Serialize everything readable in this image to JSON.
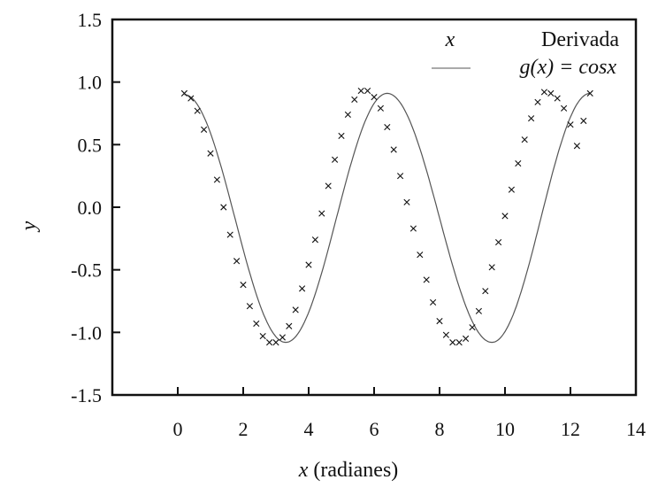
{
  "chart_data": {
    "type": "line",
    "xlabel_var": "x",
    "xlabel_unit": " (radianes)",
    "ylabel": "y",
    "xlim": [
      -2,
      14
    ],
    "ylim": [
      -1.5,
      1.5
    ],
    "x_ticks": [
      0,
      2,
      4,
      6,
      8,
      10,
      12,
      14
    ],
    "y_ticks": [
      1.5,
      1.0,
      0.5,
      0.0,
      -0.5,
      -1.0,
      -1.5
    ],
    "x_tick_labels": [
      "0",
      "2",
      "4",
      "6",
      "8",
      "10",
      "12",
      "14"
    ],
    "y_tick_labels": [
      "1.5",
      "1.0",
      "0.5",
      "0.0",
      "-0.5",
      "-1.0",
      "-1.5"
    ],
    "grid": false,
    "legend_position": "top-right",
    "legend": {
      "markers_symbol": "x",
      "markers_label": "Derivada",
      "line_label_prefix": "g(x) = ",
      "line_label_func": "cosx"
    },
    "series": [
      {
        "name": "Derivada",
        "style": "markers",
        "marker": "x",
        "color": "#111111",
        "x": [
          0.2,
          0.4,
          0.6,
          0.8,
          1.0,
          1.2,
          1.4,
          1.6,
          1.8,
          2.0,
          2.2,
          2.4,
          2.6,
          2.8,
          3.0,
          3.2,
          3.4,
          3.6,
          3.8,
          4.0,
          4.2,
          4.4,
          4.6,
          4.8,
          5.0,
          5.2,
          5.4,
          5.6,
          5.8,
          6.0,
          6.2,
          6.4,
          6.6,
          6.8,
          7.0,
          7.2,
          7.4,
          7.6,
          7.8,
          8.0,
          8.2,
          8.4,
          8.6,
          8.8,
          9.0,
          9.2,
          9.4,
          9.6,
          9.8,
          10.0,
          10.2,
          10.4,
          10.6,
          10.8,
          11.0,
          11.2,
          11.4,
          11.6,
          11.8,
          12.0,
          12.2,
          12.4,
          12.6
        ],
        "y": [
          0.91,
          0.87,
          0.77,
          0.62,
          0.43,
          0.22,
          0.0,
          -0.22,
          -0.43,
          -0.62,
          -0.79,
          -0.93,
          -1.03,
          -1.08,
          -1.08,
          -1.04,
          -0.95,
          -0.82,
          -0.65,
          -0.46,
          -0.26,
          -0.05,
          0.17,
          0.38,
          0.57,
          0.74,
          0.86,
          0.93,
          0.93,
          0.88,
          0.79,
          0.64,
          0.46,
          0.25,
          0.04,
          -0.17,
          -0.38,
          -0.58,
          -0.76,
          -0.91,
          -1.02,
          -1.08,
          -1.08,
          -1.05,
          -0.96,
          -0.83,
          -0.67,
          -0.48,
          -0.28,
          -0.07,
          0.14,
          0.35,
          0.54,
          0.71,
          0.84,
          0.92,
          0.91,
          0.87,
          0.79,
          0.66,
          0.49,
          0.69,
          0.91
        ]
      },
      {
        "name": "g(x) = cosx",
        "style": "line",
        "color": "#555555",
        "x_start": 0.2,
        "x_end": 12.6,
        "y_start": 0.9,
        "y_end": 0.91,
        "trough_1": [
          3.3,
          -1.08
        ],
        "peak": [
          6.4,
          0.91
        ],
        "trough_2": [
          9.6,
          -1.08
        ]
      }
    ]
  }
}
